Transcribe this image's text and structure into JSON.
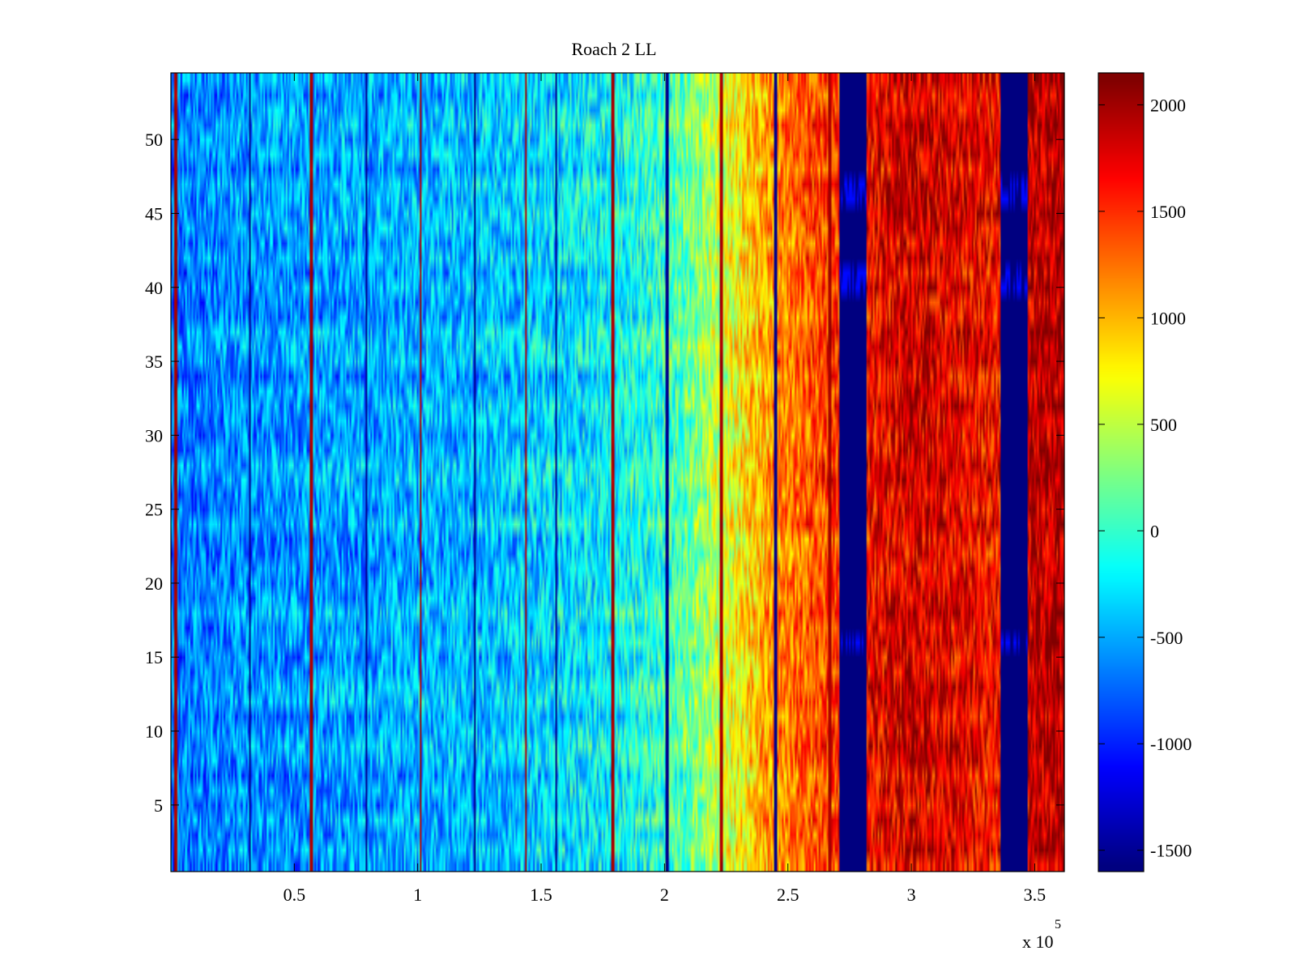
{
  "chart_data": {
    "type": "heatmap",
    "title": "Roach 2 LL",
    "xlabel": "",
    "ylabel": "",
    "x_range": [
      0,
      362000
    ],
    "y_range": [
      0.5,
      54.5
    ],
    "x_ticks": [
      50000,
      100000,
      150000,
      200000,
      250000,
      300000,
      350000
    ],
    "x_tick_labels": [
      "0.5",
      "1",
      "1.5",
      "2",
      "2.5",
      "3",
      "3.5"
    ],
    "x_exponent_label": "x 10",
    "x_exponent_power": "5",
    "y_ticks": [
      5,
      10,
      15,
      20,
      25,
      30,
      35,
      40,
      45,
      50
    ],
    "y_tick_labels": [
      "5",
      "10",
      "15",
      "20",
      "25",
      "30",
      "35",
      "40",
      "45",
      "50"
    ],
    "rows": 54,
    "colorbar": {
      "colormap": "jet",
      "clim": [
        -1600,
        2150
      ],
      "ticks": [
        2000,
        1500,
        1000,
        500,
        0,
        -500,
        -1000,
        -1500
      ],
      "tick_labels": [
        "2000",
        "1500",
        "1000",
        "500",
        "0",
        "-500",
        "-1000",
        "-1500"
      ]
    },
    "column_profile": [
      {
        "x": 0,
        "value": -700
      },
      {
        "x": 30000,
        "value": -600
      },
      {
        "x": 60000,
        "value": -550
      },
      {
        "x": 90000,
        "value": -500
      },
      {
        "x": 120000,
        "value": -450
      },
      {
        "x": 150000,
        "value": -350
      },
      {
        "x": 180000,
        "value": -200
      },
      {
        "x": 200000,
        "value": 0
      },
      {
        "x": 210000,
        "value": 200
      },
      {
        "x": 222000,
        "value": 500
      },
      {
        "x": 235000,
        "value": 900
      },
      {
        "x": 245000,
        "value": 1150
      },
      {
        "x": 258000,
        "value": 1350
      },
      {
        "x": 270000,
        "value": 1500
      },
      {
        "x": 285000,
        "value": 1700
      },
      {
        "x": 300000,
        "value": 1850
      },
      {
        "x": 320000,
        "value": 1750
      },
      {
        "x": 335000,
        "value": 1650
      },
      {
        "x": 348000,
        "value": 1900
      },
      {
        "x": 362000,
        "value": 2000
      }
    ],
    "low_bands": [
      {
        "x_start": 271000,
        "x_end": 282000,
        "value": -1600
      },
      {
        "x_start": 336000,
        "x_end": 347000,
        "value": -1600
      }
    ],
    "spike_lines_x": [
      2000,
      32000,
      57000,
      79000,
      101000,
      123000,
      144000,
      156000,
      179000,
      201000,
      223000,
      245000,
      267000
    ]
  }
}
